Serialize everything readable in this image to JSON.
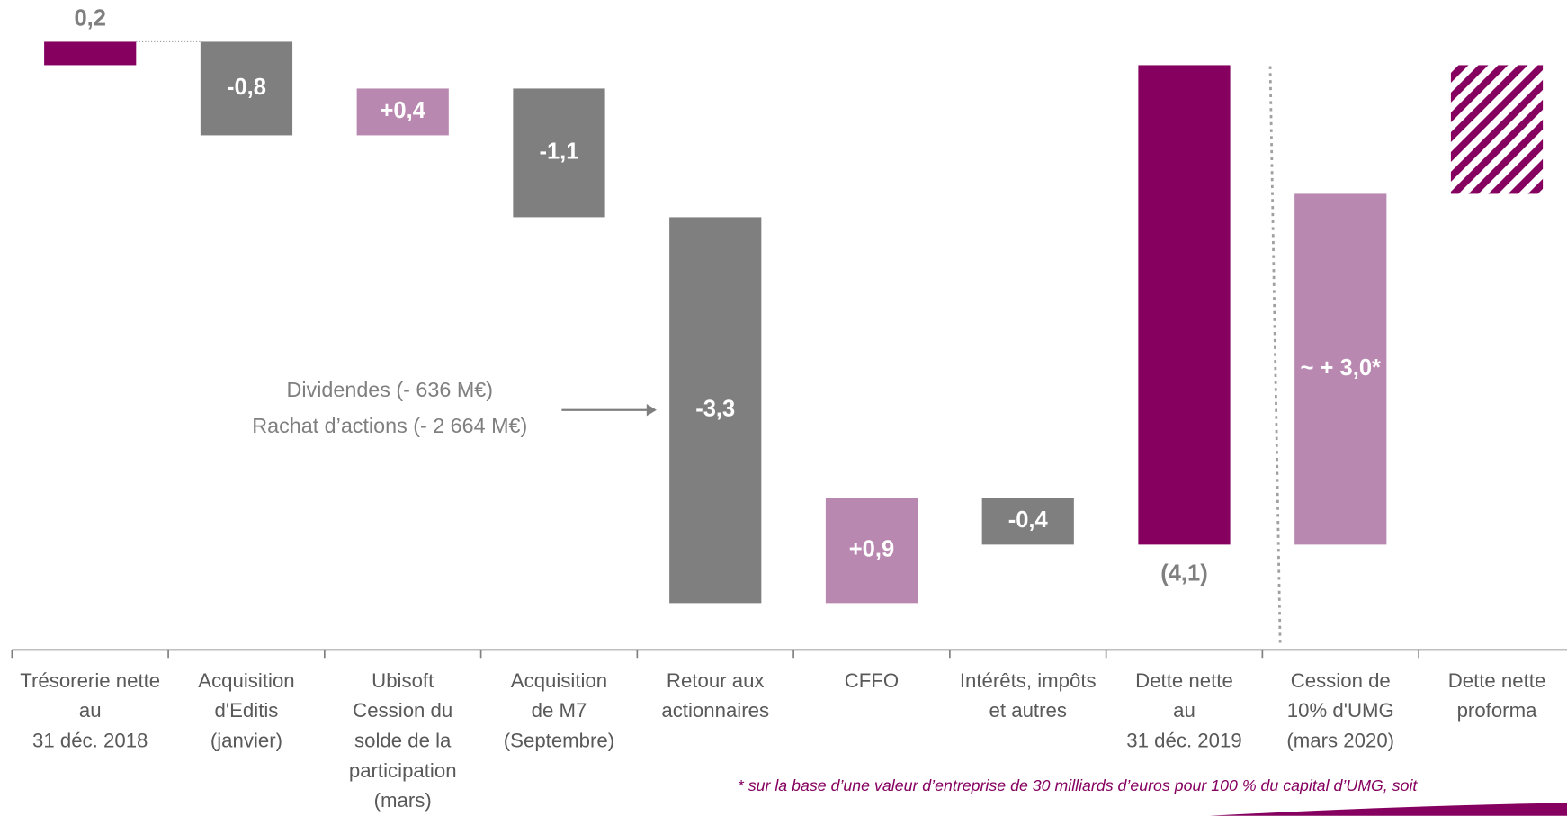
{
  "chart_data": {
    "type": "waterfall",
    "categories": [
      "Trésorerie nette\nau\n31 déc. 2018",
      "Acquisition\nd'Editis\n(janvier)",
      "Ubisoft\nCession du\nsolde de la\nparticipation\n(mars)",
      "Acquisition\nde M7\n(Septembre)",
      "Retour aux\nactionnaires",
      "CFFO",
      "Intérêts, impôts\net autres",
      "Dette nette\nau\n31 déc. 2019",
      "Cession de\n10% d'UMG\n(mars 2020)",
      "Dette nette\nproforma"
    ],
    "values": [
      0.2,
      -0.8,
      0.4,
      -1.1,
      -3.3,
      0.9,
      -0.4,
      -4.1,
      3.0,
      -1.1
    ],
    "value_labels": [
      "0,2",
      "-0,8",
      "+0,4",
      "-1,1",
      "-3,3",
      "+0,9",
      "-0,4",
      "(4,1)",
      "~ + 3,0*",
      null
    ],
    "measures": [
      "absolute",
      "relative",
      "relative",
      "relative",
      "relative",
      "relative",
      "relative",
      "total",
      "relative",
      "total"
    ],
    "colors": [
      "#85005f",
      "#7f7f7f",
      "#b988b0",
      "#7f7f7f",
      "#7f7f7f",
      "#b988b0",
      "#7f7f7f",
      "#85005f",
      "#b988b0",
      "#85005f"
    ],
    "styles": [
      "solid",
      "solid",
      "solid",
      "solid",
      "solid",
      "solid",
      "solid",
      "solid",
      "solid",
      "hatched"
    ],
    "ylim": [
      -5,
      0.5
    ],
    "annotation": [
      "Dividendes (- 636 M€)",
      "Rachat d’actions (- 2 664 M€)"
    ],
    "footnote": "* sur la base d’une valeur d’entreprise de 30 milliards d’euros pour 100 % du capital d’UMG, soit"
  }
}
